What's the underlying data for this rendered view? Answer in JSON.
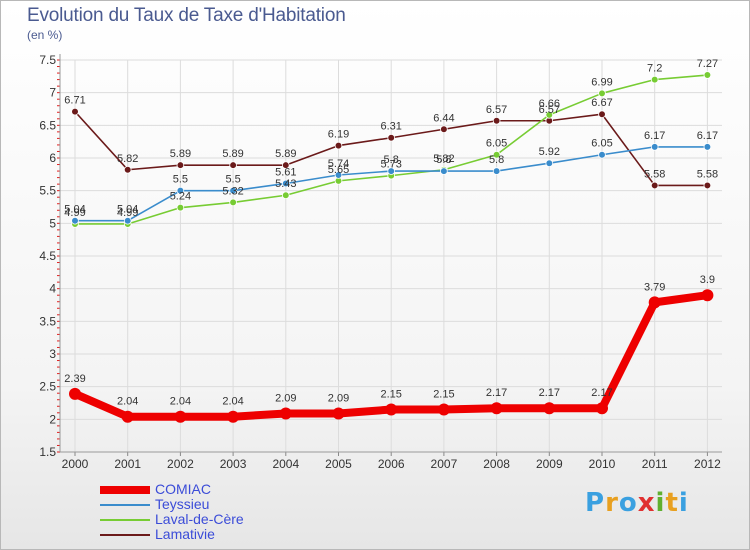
{
  "title": "Evolution du Taux de Taxe d'Habitation",
  "unit": "(en %)",
  "brand": {
    "letters": [
      "P",
      "r",
      "o",
      "x",
      "i",
      "t",
      "i"
    ],
    "colors": [
      "#3aa0e0",
      "#e8a020",
      "#3aa0e0",
      "#e03030",
      "#60b030",
      "#e8a020",
      "#3aa0e0"
    ]
  },
  "chart_data": {
    "type": "line",
    "x": [
      2000,
      2001,
      2002,
      2003,
      2004,
      2005,
      2006,
      2007,
      2008,
      2009,
      2010,
      2011,
      2012
    ],
    "ylim": [
      1.5,
      7.5
    ],
    "yticks": [
      "1.5",
      "2",
      "2.5",
      "3",
      "3.5",
      "4",
      "4.5",
      "5",
      "5.5",
      "6",
      "6.5",
      "7",
      "7.5"
    ],
    "grid": true,
    "legend_position": "bottom-left",
    "series": [
      {
        "name": "COMIAC",
        "color": "#ee0000",
        "values": [
          2.39,
          2.04,
          2.04,
          2.04,
          2.09,
          2.09,
          2.15,
          2.15,
          2.17,
          2.17,
          2.17,
          3.79,
          3.9
        ],
        "labels": [
          "2.39",
          "2.04",
          "2.04",
          "2.04",
          "2.09",
          "2.09",
          "2.15",
          "2.15",
          "2.17",
          "2.17",
          "2.17",
          "3.79",
          "3.9"
        ]
      },
      {
        "name": "Teyssieu",
        "color": "#3a8ccc",
        "values": [
          5.04,
          5.04,
          5.5,
          5.5,
          5.61,
          5.74,
          5.8,
          5.8,
          5.8,
          5.92,
          6.05,
          6.17,
          6.17
        ],
        "labels": [
          "5.04",
          "5.04",
          "5.5",
          "5.5",
          "5.61",
          "5.74",
          "5.8",
          "5.8",
          "5.8",
          "5.92",
          "6.05",
          "6.17",
          "6.17"
        ]
      },
      {
        "name": "Laval-de-Cère",
        "color": "#77cc33",
        "values": [
          4.99,
          4.99,
          5.24,
          5.32,
          5.43,
          5.65,
          5.73,
          5.82,
          6.05,
          6.66,
          6.99,
          7.2,
          7.27
        ],
        "labels": [
          "4.99",
          "4.99",
          "5.24",
          "5.32",
          "5.43",
          "5.65",
          "5.73",
          "5.82",
          "6.05",
          "6.66",
          "6.99",
          "7.2",
          "7.27"
        ]
      },
      {
        "name": "Lamativie",
        "color": "#6b1a1a",
        "values": [
          6.71,
          5.82,
          5.89,
          5.89,
          5.89,
          6.19,
          6.31,
          6.44,
          6.57,
          6.57,
          6.67,
          5.58,
          5.58
        ],
        "labels": [
          "6.71",
          "5.82",
          "5.89",
          "5.89",
          "5.89",
          "6.19",
          "6.31",
          "6.44",
          "6.57",
          "6.57",
          "6.67",
          "5.58",
          "5.58"
        ]
      }
    ]
  }
}
